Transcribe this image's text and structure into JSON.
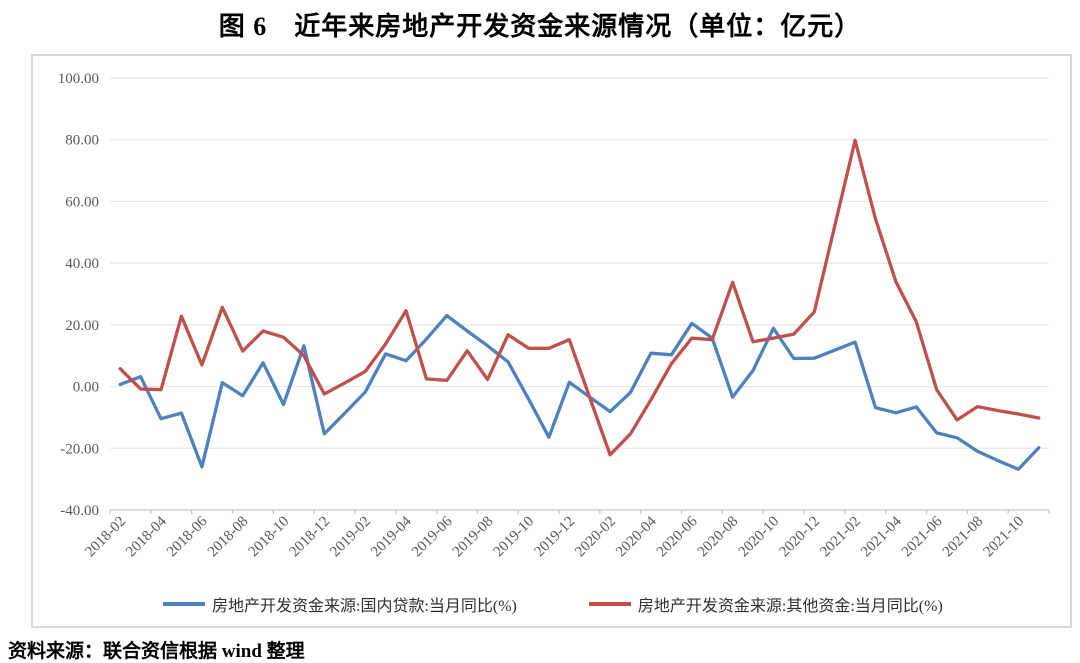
{
  "page": {
    "title": "图 6　近年来房地产开发资金来源情况（单位：亿元）",
    "source_note": "资料来源：联合资信根据 wind 整理"
  },
  "chart_data": {
    "type": "line",
    "title": "图 6　近年来房地产开发资金来源情况（单位：亿元）",
    "unit": "当月同比(%)",
    "grid": true,
    "legend_position": "bottom",
    "ylim": [
      -40,
      100
    ],
    "y_ticks": [
      100,
      80,
      60,
      40,
      20,
      0,
      -20,
      -40
    ],
    "y_tick_labels": [
      "100.00",
      "80.00",
      "60.00",
      "40.00",
      "20.00",
      "0.00",
      "-20.00",
      "-40.00"
    ],
    "x": [
      "2018-02",
      "2018-03",
      "2018-04",
      "2018-05",
      "2018-06",
      "2018-07",
      "2018-08",
      "2018-09",
      "2018-10",
      "2018-11",
      "2018-12",
      "2019-01",
      "2019-02",
      "2019-03",
      "2019-04",
      "2019-05",
      "2019-06",
      "2019-07",
      "2019-08",
      "2019-09",
      "2019-10",
      "2019-11",
      "2019-12",
      "2020-01",
      "2020-02",
      "2020-03",
      "2020-04",
      "2020-05",
      "2020-06",
      "2020-07",
      "2020-08",
      "2020-09",
      "2020-10",
      "2020-11",
      "2020-12",
      "2021-01",
      "2021-02",
      "2021-03",
      "2021-04",
      "2021-05",
      "2021-06",
      "2021-07",
      "2021-08",
      "2021-09",
      "2021-10",
      "2021-11"
    ],
    "x_tick_labels": [
      "2018-02",
      "2018-04",
      "2018-06",
      "2018-08",
      "2018-10",
      "2018-12",
      "2019-02",
      "2019-04",
      "2019-06",
      "2019-08",
      "2019-10",
      "2019-12",
      "2020-02",
      "2020-04",
      "2020-06",
      "2020-08",
      "2020-10",
      "2020-12",
      "2021-02",
      "2021-04",
      "2021-06",
      "2021-08",
      "2021-10"
    ],
    "series": [
      {
        "name": "房地产开发资金来源:国内贷款:当月同比(%)",
        "color": "#4F81BD",
        "values": [
          0.7,
          3.2,
          -10.4,
          -8.6,
          -26.0,
          1.3,
          -3.0,
          7.7,
          -5.8,
          13.2,
          -15.3,
          -8.6,
          -1.8,
          10.6,
          8.4,
          15.4,
          23.0,
          18.0,
          13.2,
          8.0,
          -4.0,
          -16.4,
          1.4,
          -3.4,
          -8.1,
          -1.9,
          10.8,
          10.3,
          20.5,
          15.7,
          -3.4,
          5.2,
          18.9,
          9.1,
          9.2,
          11.8,
          14.4,
          -6.8,
          -8.5,
          -6.6,
          -15.0,
          -16.6,
          -21.0,
          -24.0,
          -26.8,
          -19.8
        ]
      },
      {
        "name": "房地产开发资金来源:其他资金:当月同比(%)",
        "color": "#C0504D",
        "values": [
          5.8,
          -0.8,
          -1.0,
          22.8,
          7.0,
          25.7,
          11.5,
          18.0,
          16.0,
          10.0,
          -2.4,
          1.2,
          4.9,
          13.8,
          24.6,
          2.5,
          2.0,
          11.6,
          2.3,
          16.8,
          12.4,
          12.4,
          15.2,
          -3.5,
          -22.1,
          -15.3,
          -4.3,
          7.4,
          15.7,
          15.2,
          33.8,
          14.5,
          15.7,
          17.0,
          24.2,
          52.0,
          79.8,
          54.3,
          34.0,
          21.0,
          -1.0,
          -10.8,
          -6.5,
          -7.8,
          -8.9,
          -10.2
        ]
      }
    ],
    "colors": {
      "grid_line": "#e8e8e8",
      "axis_line": "#c6c6c6",
      "tick_text": "#595959",
      "box_border": "#d9d9d9"
    }
  }
}
